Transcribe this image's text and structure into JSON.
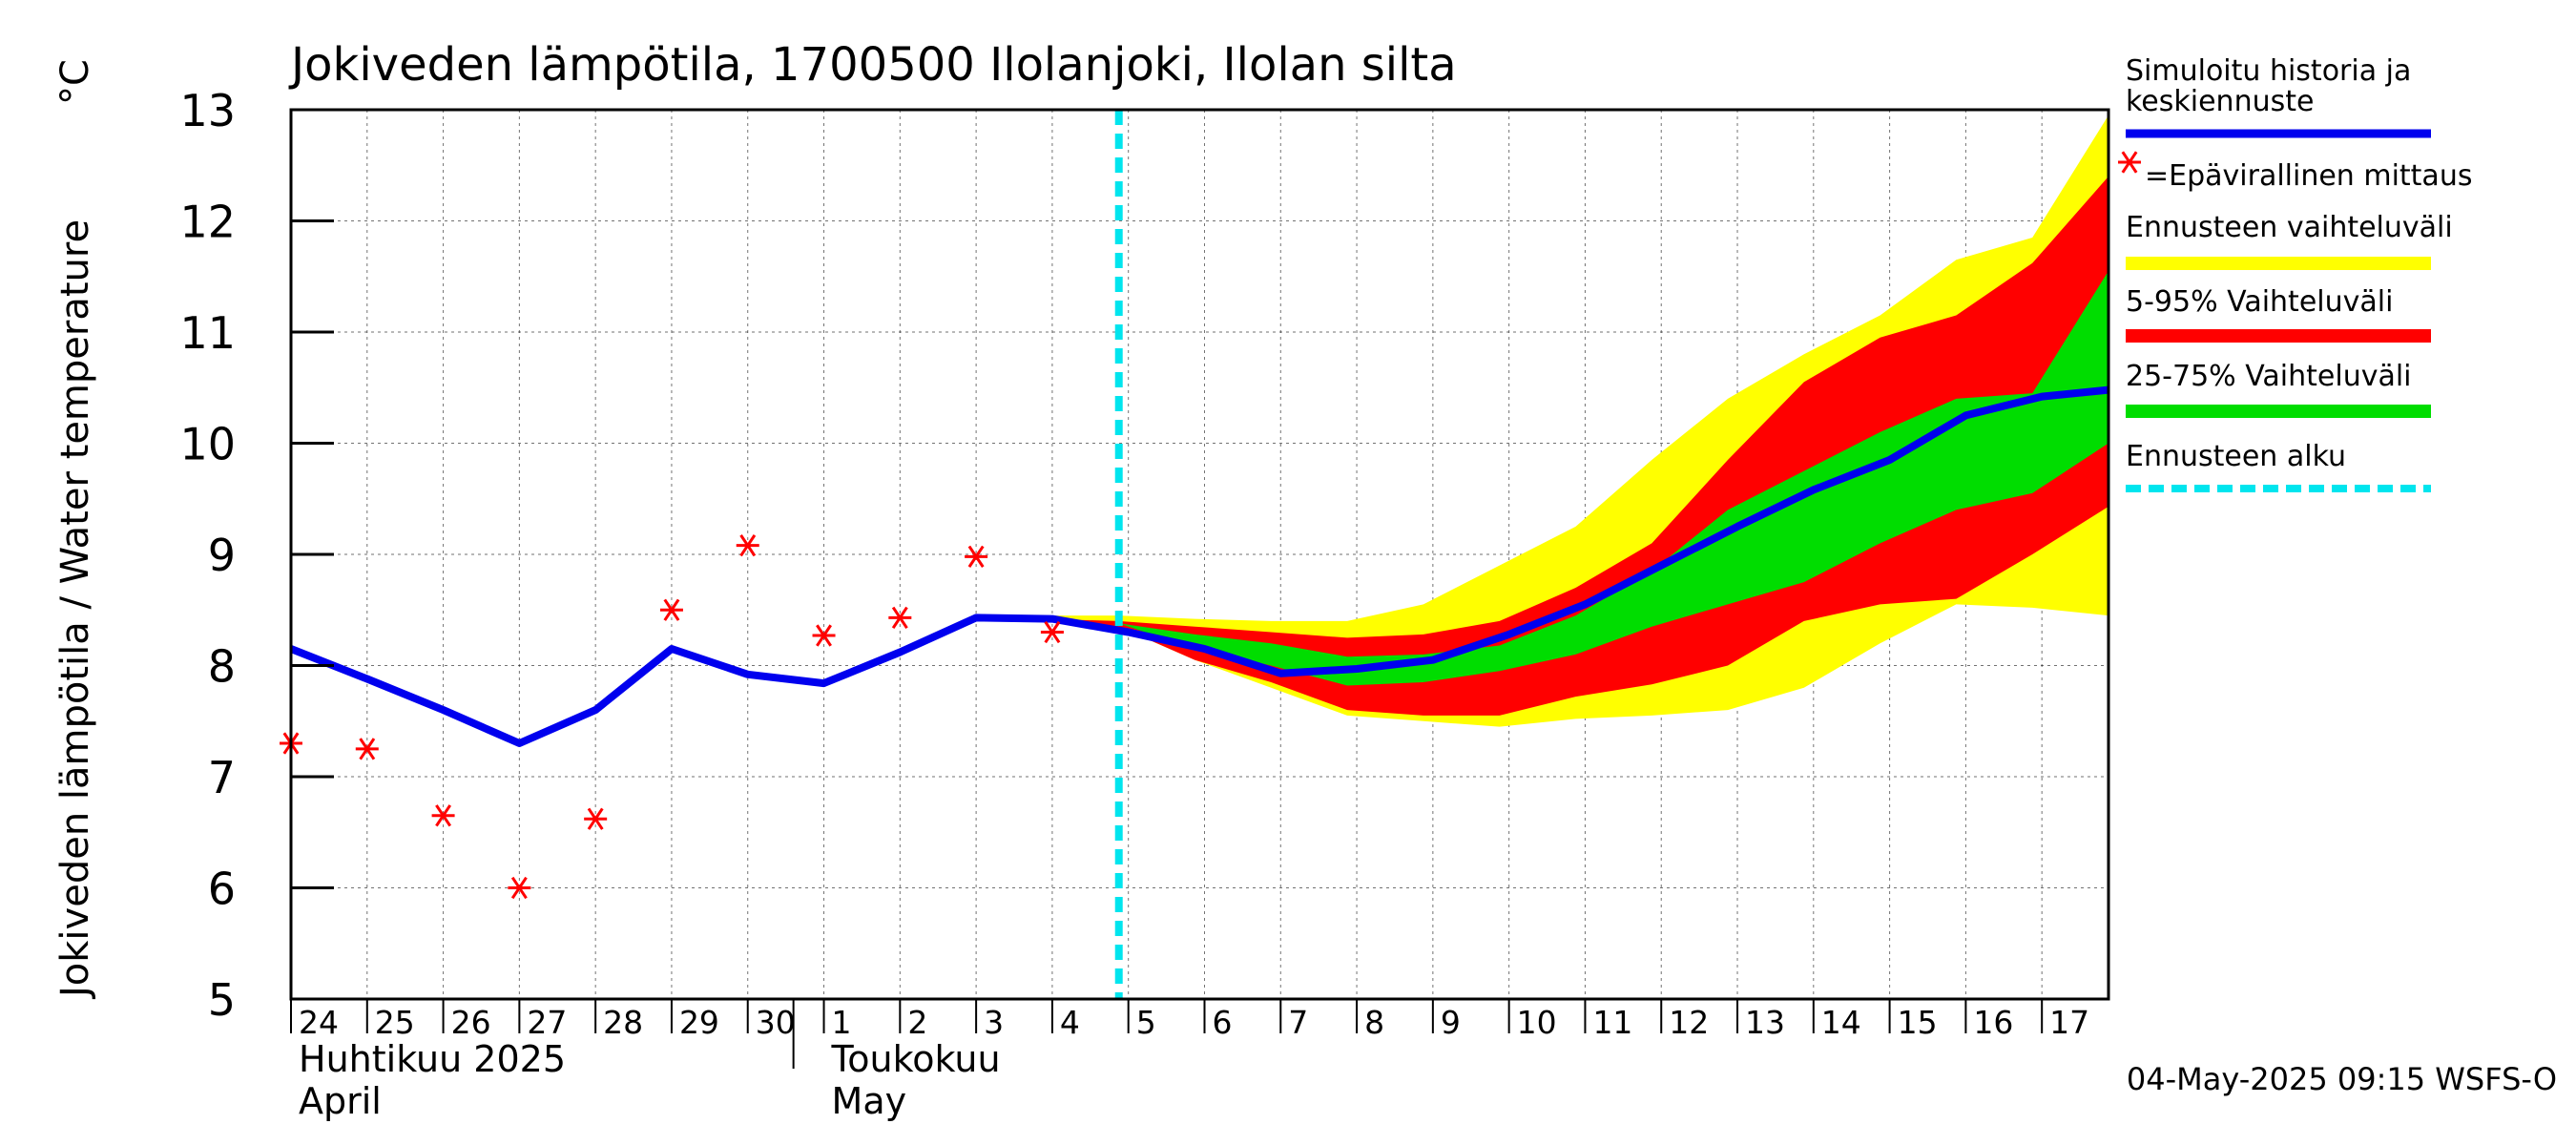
{
  "chart_data": {
    "type": "area",
    "title": "Jokiveden lämpötila, 1700500 Ilolanjoki, Ilolan silta",
    "ylabel": "Jokiveden lämpötila / Water temperature",
    "yunit": "°C",
    "ylim": [
      5,
      13
    ],
    "yticks": [
      5,
      6,
      7,
      8,
      9,
      10,
      11,
      12,
      13
    ],
    "xlim": [
      "2025-04-24",
      "2025-05-17 21:00"
    ],
    "x_ticks": [
      {
        "date": "2025-04-24",
        "label": "24"
      },
      {
        "date": "2025-04-25",
        "label": "25"
      },
      {
        "date": "2025-04-26",
        "label": "26"
      },
      {
        "date": "2025-04-27",
        "label": "27"
      },
      {
        "date": "2025-04-28",
        "label": "28"
      },
      {
        "date": "2025-04-29",
        "label": "29"
      },
      {
        "date": "2025-04-30",
        "label": "30"
      },
      {
        "date": "2025-05-01",
        "label": "1"
      },
      {
        "date": "2025-05-02",
        "label": "2"
      },
      {
        "date": "2025-05-03",
        "label": "3"
      },
      {
        "date": "2025-05-04",
        "label": "4"
      },
      {
        "date": "2025-05-05",
        "label": "5"
      },
      {
        "date": "2025-05-06",
        "label": "6"
      },
      {
        "date": "2025-05-07",
        "label": "7"
      },
      {
        "date": "2025-05-08",
        "label": "8"
      },
      {
        "date": "2025-05-09",
        "label": "9"
      },
      {
        "date": "2025-05-10",
        "label": "10"
      },
      {
        "date": "2025-05-11",
        "label": "11"
      },
      {
        "date": "2025-05-12",
        "label": "12"
      },
      {
        "date": "2025-05-13",
        "label": "13"
      },
      {
        "date": "2025-05-14",
        "label": "14"
      },
      {
        "date": "2025-05-15",
        "label": "15"
      },
      {
        "date": "2025-05-16",
        "label": "16"
      },
      {
        "date": "2025-05-17",
        "label": "17"
      }
    ],
    "month_labels": [
      {
        "date": "2025-04-24",
        "line1": "Huhtikuu  2025",
        "line2": "April"
      },
      {
        "date": "2025-05-01",
        "line1": "Toukokuu",
        "line2": "May"
      }
    ],
    "forecast_start": "2025-05-04 21:00",
    "band_dates": [
      "2025-05-03 21:00",
      "2025-05-04 21:00",
      "2025-05-05 21:00",
      "2025-05-06 21:00",
      "2025-05-07 21:00",
      "2025-05-08 21:00",
      "2025-05-09 21:00",
      "2025-05-10 21:00",
      "2025-05-11 21:00",
      "2025-05-12 21:00",
      "2025-05-13 21:00",
      "2025-05-14 21:00",
      "2025-05-15 21:00",
      "2025-05-16 21:00",
      "2025-05-17 21:00"
    ],
    "bands": [
      {
        "name": "Ennusteen vaihteluväli",
        "color": "#ffff00",
        "lower": [
          8.42,
          8.35,
          8.05,
          7.8,
          7.55,
          7.5,
          7.45,
          7.52,
          7.55,
          7.6,
          7.8,
          8.2,
          8.55,
          8.52,
          8.45
        ],
        "upper": [
          8.45,
          8.45,
          8.42,
          8.4,
          8.4,
          8.55,
          8.9,
          9.25,
          9.85,
          10.4,
          10.8,
          11.15,
          11.65,
          11.85,
          12.95
        ]
      },
      {
        "name": "5-95% Vaihteluväli",
        "color": "#ff0000",
        "lower": [
          8.42,
          8.35,
          8.05,
          7.85,
          7.6,
          7.55,
          7.55,
          7.72,
          7.83,
          8.0,
          8.4,
          8.55,
          8.6,
          9.0,
          9.43
        ]
      },
      {
        "name": "25-75% Vaihteluväli",
        "color": "#00dd00",
        "lower": [
          8.42,
          8.38,
          8.15,
          8.0,
          7.82,
          7.85,
          7.95,
          8.1,
          8.35,
          8.55,
          8.75,
          9.1,
          9.4,
          9.55,
          10.0
        ],
        "upper": [
          8.42,
          8.38,
          8.28,
          8.2,
          8.08,
          8.1,
          8.18,
          8.45,
          8.85,
          9.4,
          9.75,
          10.1,
          10.4,
          10.45,
          11.55
        ]
      }
    ],
    "band_5_95_upper": [
      8.42,
      8.4,
      8.35,
      8.3,
      8.25,
      8.28,
      8.4,
      8.7,
      9.1,
      9.85,
      10.55,
      10.95,
      11.15,
      11.62,
      12.4
    ],
    "series": [
      {
        "name": "Simuloitu historia ja keskiennuste",
        "color": "#0000ee",
        "x": [
          "2025-04-24",
          "2025-04-25",
          "2025-04-26",
          "2025-04-27",
          "2025-04-28",
          "2025-04-29",
          "2025-04-30",
          "2025-05-01",
          "2025-05-02",
          "2025-05-03",
          "2025-05-04",
          "2025-05-05",
          "2025-05-06",
          "2025-05-07",
          "2025-05-08",
          "2025-05-09",
          "2025-05-10",
          "2025-05-11",
          "2025-05-12",
          "2025-05-13",
          "2025-05-14",
          "2025-05-15",
          "2025-05-16",
          "2025-05-17",
          "2025-05-17 21:00"
        ],
        "y": [
          8.15,
          7.88,
          7.6,
          7.3,
          7.6,
          8.15,
          7.92,
          7.84,
          8.12,
          8.43,
          8.42,
          8.3,
          8.15,
          7.93,
          7.97,
          8.05,
          8.28,
          8.55,
          8.9,
          9.25,
          9.58,
          9.85,
          10.25,
          10.42,
          10.48
        ]
      },
      {
        "name": "=Epävirallinen mittaus",
        "color": "#ff0000",
        "x": [
          "2025-04-24",
          "2025-04-25",
          "2025-04-26",
          "2025-04-27",
          "2025-04-28",
          "2025-04-29",
          "2025-04-30",
          "2025-05-01",
          "2025-05-02",
          "2025-05-03",
          "2025-05-04"
        ],
        "y": [
          7.3,
          7.25,
          6.65,
          6.0,
          6.62,
          8.5,
          9.08,
          8.27,
          8.43,
          8.98,
          8.3
        ]
      }
    ],
    "legend": [
      {
        "label": "Simuloitu historia ja keskiennuste",
        "kind": "line",
        "color": "#0000ee"
      },
      {
        "label": "=Epävirallinen mittaus",
        "kind": "marker",
        "color": "#ff0000"
      },
      {
        "label": "Ennusteen vaihteluväli",
        "kind": "bar",
        "color": "#ffff00"
      },
      {
        "label": "5-95% Vaihteluväli",
        "kind": "bar",
        "color": "#ff0000"
      },
      {
        "label": "25-75% Vaihteluväli",
        "kind": "bar",
        "color": "#00dd00"
      },
      {
        "label": "Ennusteen alku",
        "kind": "dashed",
        "color": "#00e5ee"
      }
    ],
    "legend_placement": "right",
    "grid": true,
    "footer": "04-May-2025 09:15 WSFS-O"
  }
}
